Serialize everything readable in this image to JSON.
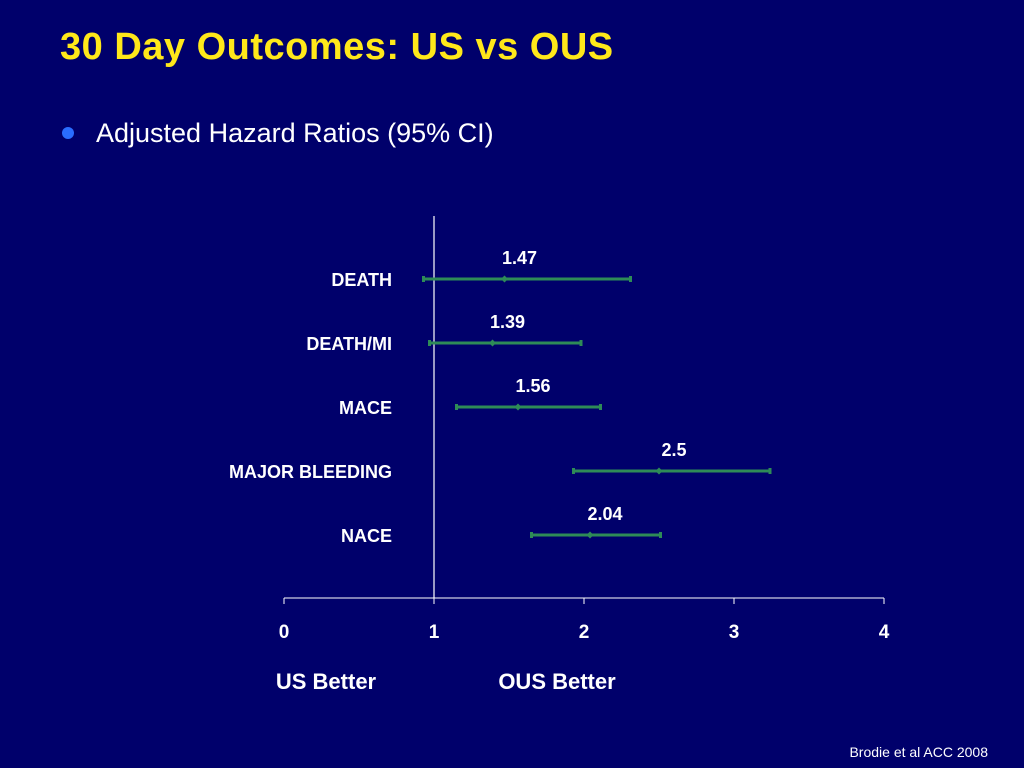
{
  "slide": {
    "title": "30 Day Outcomes:  US vs OUS",
    "bullet": "Adjusted Hazard Ratios (95% CI)",
    "citation": "Brodie et al ACC 2008"
  },
  "colors": {
    "background": "#00006b",
    "title": "#ffe81a",
    "text": "#ffffff",
    "marker": "#2e8b57",
    "bullet": "#2a6dff"
  },
  "chart_data": {
    "type": "forest",
    "title": "",
    "xlabel": "",
    "ylabel": "",
    "xlim": [
      0,
      4
    ],
    "xticks": [
      0,
      1,
      2,
      3,
      4
    ],
    "reference_line": 1,
    "direction_labels": [
      "US Better",
      "OUS Better"
    ],
    "rows": [
      {
        "label": "DEATH",
        "value": 1.47,
        "value_label": "1.47",
        "ci": [
          0.93,
          2.31
        ]
      },
      {
        "label": "DEATH/MI",
        "value": 1.39,
        "value_label": "1.39",
        "ci": [
          0.97,
          1.98
        ]
      },
      {
        "label": "MACE",
        "value": 1.56,
        "value_label": "1.56",
        "ci": [
          1.15,
          2.11
        ]
      },
      {
        "label": "MAJOR BLEEDING",
        "value": 2.5,
        "value_label": "2.5",
        "ci": [
          1.93,
          3.24
        ]
      },
      {
        "label": "NACE",
        "value": 2.04,
        "value_label": "2.04",
        "ci": [
          1.65,
          2.51
        ]
      }
    ]
  }
}
